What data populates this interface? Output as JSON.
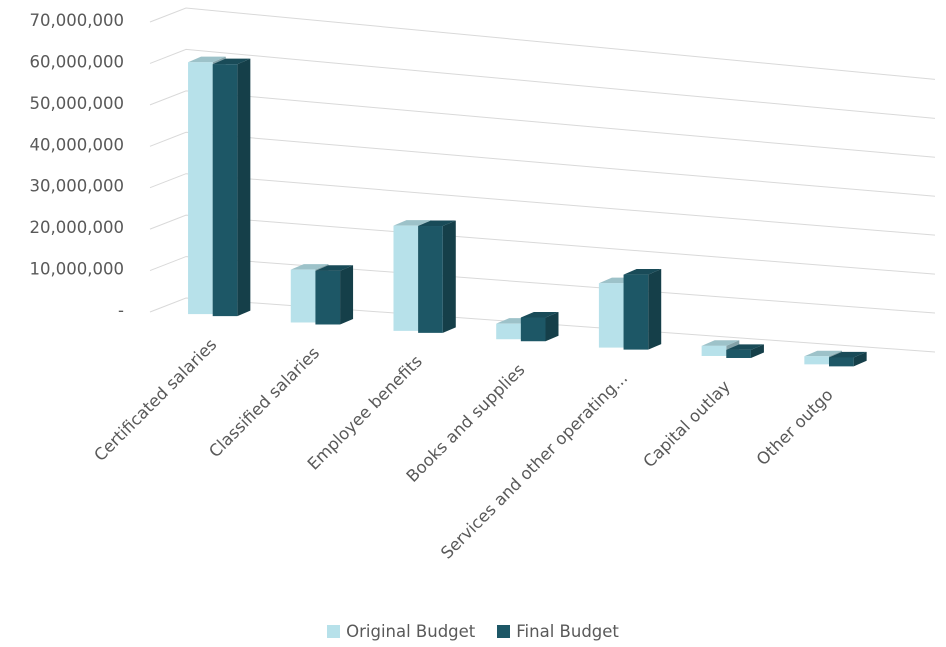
{
  "chart_data": {
    "type": "bar",
    "categories": [
      "Certificated salaries",
      "Classified salaries",
      "Employee benefits",
      "Books and supplies",
      "Services and other operating...",
      "Capital outlay",
      "Other outgo"
    ],
    "series": [
      {
        "name": "Original Budget",
        "color": "#b7e1ea",
        "values": [
          60800000,
          12800000,
          25600000,
          3800000,
          15800000,
          2500000,
          2000000
        ]
      },
      {
        "name": "Final Budget",
        "color": "#1d5766",
        "values": [
          60800000,
          13000000,
          26000000,
          5800000,
          18400000,
          2000000,
          2200000
        ]
      }
    ],
    "yticks": [
      "-",
      "10,000,000",
      "20,000,000",
      "30,000,000",
      "40,000,000",
      "50,000,000",
      "60,000,000",
      "70,000,000"
    ],
    "ylim": [
      0,
      70000000
    ],
    "grid": true,
    "legend": "bottom",
    "style": "3d-clustered-column"
  }
}
